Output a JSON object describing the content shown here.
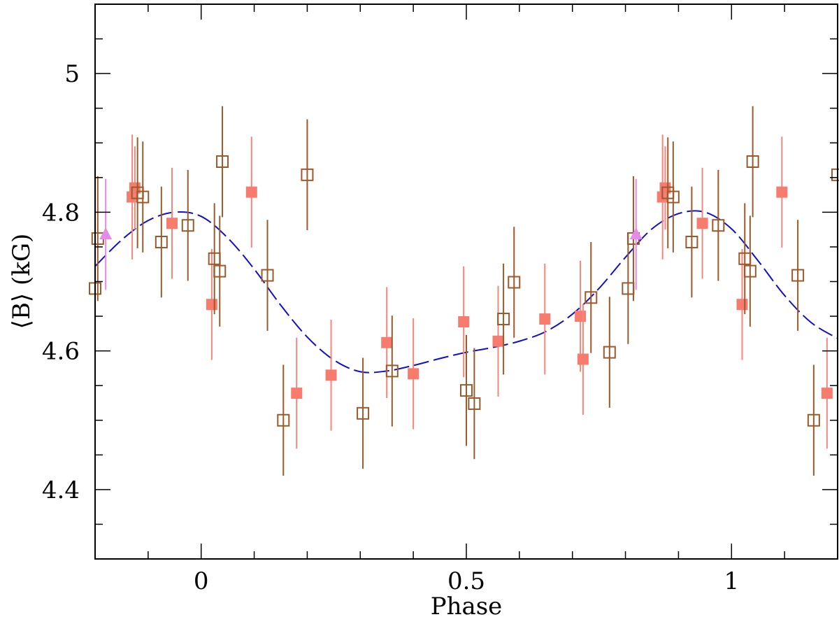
{
  "chart_data": {
    "type": "scatter",
    "xlabel": "Phase",
    "ylabel": "⟨B⟩ (kG)",
    "xlim": [
      -0.2,
      1.2
    ],
    "ylim": [
      4.3,
      5.1
    ],
    "x_ticks": [
      0,
      0.5,
      1
    ],
    "x_tick_labels": [
      "0",
      "0.5",
      "1"
    ],
    "y_ticks": [
      4.4,
      4.6,
      4.8,
      5.0
    ],
    "y_tick_labels": [
      "4.4",
      "4.6",
      "4.8",
      "5"
    ],
    "colors": {
      "filled_square": "#f87c6e",
      "filled_square_err": "#f2887c",
      "open_square": "#9a5a2b",
      "triangle": "#e48be8",
      "fit": "#1010c8"
    },
    "series": [
      {
        "name": "filled squares",
        "marker": "filled-square",
        "points": [
          [
            -0.13,
            4.822,
            0.09
          ],
          [
            -0.125,
            4.835,
            0.06
          ],
          [
            -0.055,
            4.784,
            0.08
          ],
          [
            0.02,
            4.667,
            0.08
          ],
          [
            0.095,
            4.829,
            0.08
          ],
          [
            0.18,
            4.539,
            0.08
          ],
          [
            0.245,
            4.565,
            0.08
          ],
          [
            0.35,
            4.612,
            0.08
          ],
          [
            0.4,
            4.567,
            0.08
          ],
          [
            0.495,
            4.642,
            0.08
          ],
          [
            0.56,
            4.614,
            0.08
          ],
          [
            0.648,
            4.646,
            0.08
          ],
          [
            0.715,
            4.65,
            0.08
          ],
          [
            0.72,
            4.588,
            0.08
          ],
          [
            0.87,
            4.822,
            0.09
          ],
          [
            0.875,
            4.835,
            0.06
          ],
          [
            0.945,
            4.784,
            0.08
          ],
          [
            1.02,
            4.667,
            0.08
          ],
          [
            1.095,
            4.829,
            0.08
          ],
          [
            1.18,
            4.539,
            0.08
          ]
        ]
      },
      {
        "name": "open squares",
        "marker": "open-square",
        "points": [
          [
            -0.195,
            4.762,
            0.09
          ],
          [
            -0.2,
            4.69,
            0.08
          ],
          [
            -0.12,
            4.828,
            0.08
          ],
          [
            -0.11,
            4.822,
            0.08
          ],
          [
            -0.075,
            4.757,
            0.08
          ],
          [
            -0.025,
            4.781,
            0.08
          ],
          [
            0.025,
            4.733,
            0.08
          ],
          [
            0.035,
            4.715,
            0.08
          ],
          [
            0.04,
            4.873,
            0.08
          ],
          [
            0.125,
            4.709,
            0.08
          ],
          [
            0.155,
            4.5,
            0.08
          ],
          [
            0.2,
            4.854,
            0.08
          ],
          [
            0.305,
            4.51,
            0.08
          ],
          [
            0.36,
            4.571,
            0.08
          ],
          [
            0.5,
            4.543,
            0.08
          ],
          [
            0.515,
            4.524,
            0.08
          ],
          [
            0.57,
            4.646,
            0.08
          ],
          [
            0.59,
            4.699,
            0.08
          ],
          [
            0.735,
            4.677,
            0.08
          ],
          [
            0.77,
            4.598,
            0.08
          ],
          [
            0.805,
            4.69,
            0.08
          ],
          [
            0.815,
            4.762,
            0.09
          ],
          [
            0.88,
            4.828,
            0.08
          ],
          [
            0.89,
            4.822,
            0.08
          ],
          [
            0.925,
            4.757,
            0.08
          ],
          [
            0.975,
            4.781,
            0.08
          ],
          [
            1.025,
            4.733,
            0.08
          ],
          [
            1.035,
            4.715,
            0.08
          ],
          [
            1.04,
            4.873,
            0.08
          ],
          [
            1.125,
            4.709,
            0.08
          ],
          [
            1.155,
            4.5,
            0.08
          ],
          [
            1.2,
            4.854,
            0.08
          ]
        ]
      },
      {
        "name": "triangles",
        "marker": "triangle",
        "points": [
          [
            -0.18,
            4.768,
            0.08
          ],
          [
            0.82,
            4.768,
            0.08
          ]
        ]
      }
    ],
    "fit": {
      "name": "model fit",
      "style": "dashed",
      "x": [
        -0.2,
        -0.15,
        -0.1,
        -0.05,
        0.0,
        0.05,
        0.1,
        0.15,
        0.2,
        0.25,
        0.3,
        0.35,
        0.4,
        0.45,
        0.5,
        0.55,
        0.6,
        0.65,
        0.7,
        0.75,
        0.8,
        0.85,
        0.9,
        0.95,
        1.0,
        1.05,
        1.1,
        1.15,
        1.2
      ],
      "y": [
        4.722,
        4.76,
        4.788,
        4.8,
        4.794,
        4.763,
        4.718,
        4.666,
        4.62,
        4.587,
        4.57,
        4.571,
        4.579,
        4.589,
        4.598,
        4.605,
        4.614,
        4.628,
        4.653,
        4.69,
        4.735,
        4.776,
        4.798,
        4.8,
        4.776,
        4.73,
        4.68,
        4.641,
        4.618
      ]
    }
  }
}
